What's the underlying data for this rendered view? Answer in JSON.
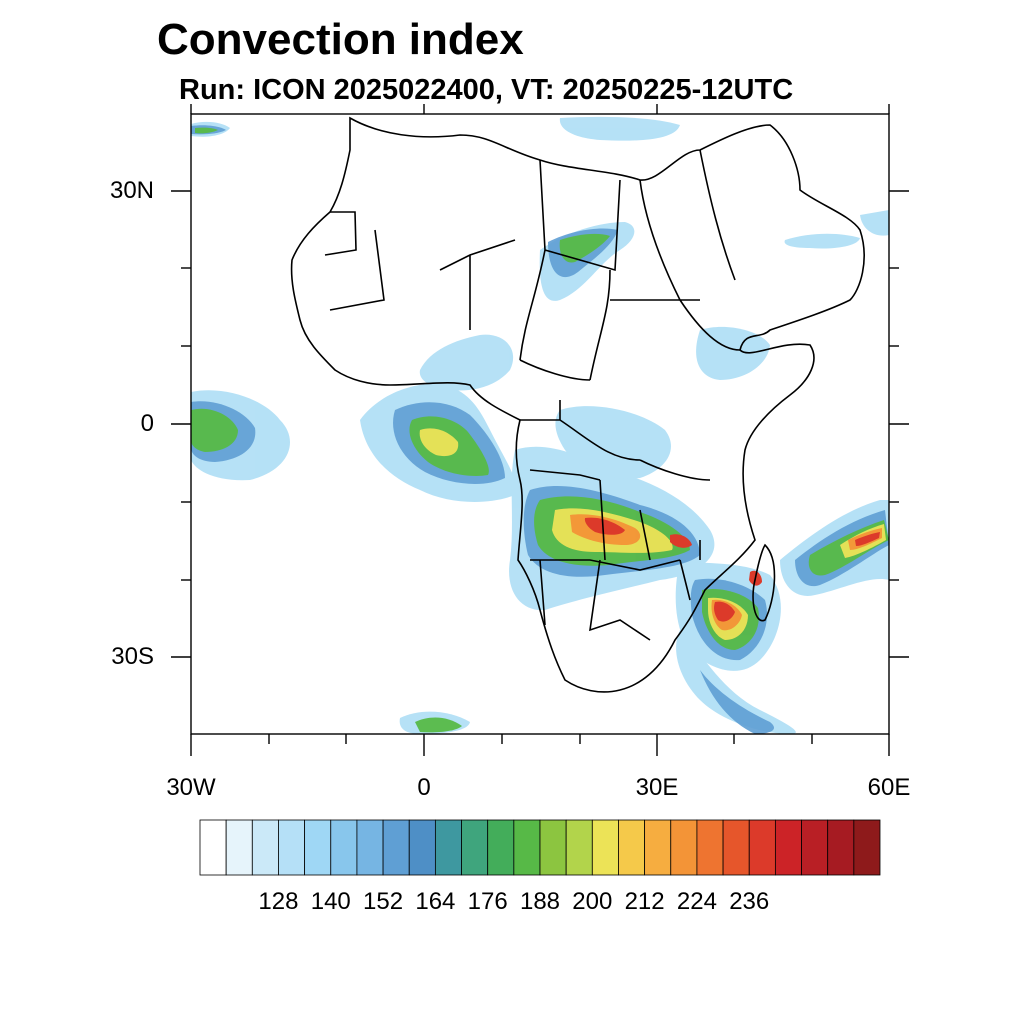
{
  "title": "Convection index",
  "subtitle": "Run: ICON 2025022400,  VT: 20250225-12UTC",
  "axes": {
    "lat_labels": [
      "30N",
      "0",
      "30S"
    ],
    "lon_labels": [
      "30W",
      "0",
      "30E",
      "60E"
    ]
  },
  "colorbar": {
    "colors": [
      "#ffffff",
      "#e6f4fb",
      "#cbe9f8",
      "#b5e0f7",
      "#9fd7f5",
      "#88c6ec",
      "#76b5e3",
      "#5f9fd4",
      "#4e8fc6",
      "#3e98a0",
      "#3fa57d",
      "#43ad5a",
      "#57b947",
      "#8cc540",
      "#b2d44b",
      "#ece357",
      "#f5c94a",
      "#f6ad40",
      "#f39437",
      "#ee7430",
      "#e6562b",
      "#dc3a2a",
      "#cc2327",
      "#b91f25",
      "#a61b22",
      "#8e1a1b"
    ],
    "tick_labels": [
      "128",
      "140",
      "152",
      "164",
      "176",
      "188",
      "200",
      "212",
      "224",
      "236"
    ]
  }
}
